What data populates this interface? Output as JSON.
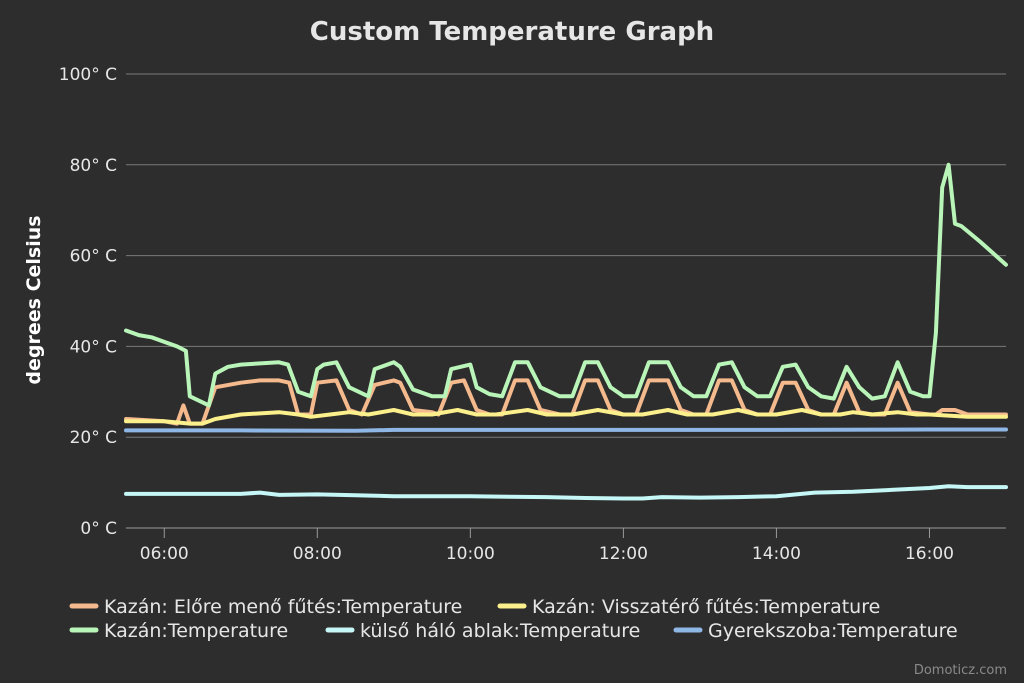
{
  "chart_data": {
    "type": "line",
    "title": "Custom Temperature Graph",
    "ylabel": "degrees Celsius",
    "xlabel": "",
    "ylim": [
      0,
      100
    ],
    "xlim": [
      "05:30",
      "17:00"
    ],
    "y_ticks": [
      {
        "value": 0,
        "label": "0° C"
      },
      {
        "value": 20,
        "label": "20° C"
      },
      {
        "value": 40,
        "label": "40° C"
      },
      {
        "value": 60,
        "label": "60° C"
      },
      {
        "value": 80,
        "label": "80° C"
      },
      {
        "value": 100,
        "label": "100° C"
      }
    ],
    "x_ticks": [
      "06:00",
      "08:00",
      "10:00",
      "12:00",
      "14:00",
      "16:00"
    ],
    "grid": true,
    "legend_position": "bottom",
    "series": [
      {
        "name": "Kazán: Előre menő fűtés:Temperature",
        "color": "#f4b98c",
        "points": [
          [
            "05:30",
            24
          ],
          [
            "06:00",
            23.5
          ],
          [
            "06:10",
            23
          ],
          [
            "06:15",
            27
          ],
          [
            "06:20",
            23
          ],
          [
            "06:30",
            23
          ],
          [
            "06:35",
            27
          ],
          [
            "06:40",
            31
          ],
          [
            "07:00",
            32
          ],
          [
            "07:15",
            32.5
          ],
          [
            "07:30",
            32.5
          ],
          [
            "07:38",
            32
          ],
          [
            "07:45",
            25
          ],
          [
            "07:55",
            25
          ],
          [
            "08:00",
            32
          ],
          [
            "08:15",
            32.5
          ],
          [
            "08:25",
            26
          ],
          [
            "08:35",
            25
          ],
          [
            "08:45",
            31.5
          ],
          [
            "09:00",
            32.5
          ],
          [
            "09:05",
            32
          ],
          [
            "09:15",
            26
          ],
          [
            "09:30",
            25.5
          ],
          [
            "09:35",
            25
          ],
          [
            "09:45",
            32
          ],
          [
            "09:55",
            32.5
          ],
          [
            "10:05",
            26
          ],
          [
            "10:15",
            25
          ],
          [
            "10:25",
            25
          ],
          [
            "10:35",
            32.5
          ],
          [
            "10:45",
            32.5
          ],
          [
            "10:55",
            26
          ],
          [
            "11:10",
            25
          ],
          [
            "11:20",
            25
          ],
          [
            "11:30",
            32.5
          ],
          [
            "11:40",
            32.5
          ],
          [
            "11:50",
            26
          ],
          [
            "12:00",
            25
          ],
          [
            "12:10",
            25
          ],
          [
            "12:20",
            32.5
          ],
          [
            "12:35",
            32.5
          ],
          [
            "12:45",
            26
          ],
          [
            "12:55",
            25
          ],
          [
            "13:05",
            25
          ],
          [
            "13:15",
            32.5
          ],
          [
            "13:25",
            32.5
          ],
          [
            "13:35",
            26
          ],
          [
            "13:45",
            25
          ],
          [
            "13:55",
            25
          ],
          [
            "14:05",
            32
          ],
          [
            "14:15",
            32
          ],
          [
            "14:25",
            26
          ],
          [
            "14:35",
            25
          ],
          [
            "14:45",
            25
          ],
          [
            "14:55",
            32
          ],
          [
            "15:05",
            25.5
          ],
          [
            "15:15",
            25
          ],
          [
            "15:25",
            25
          ],
          [
            "15:35",
            32
          ],
          [
            "15:45",
            25.5
          ],
          [
            "16:00",
            25
          ],
          [
            "16:05",
            25
          ],
          [
            "16:10",
            26
          ],
          [
            "16:20",
            26
          ],
          [
            "16:30",
            25
          ],
          [
            "17:00",
            25
          ]
        ]
      },
      {
        "name": "Kazán: Visszatérő fűtés:Temperature",
        "color": "#fcf08c",
        "points": [
          [
            "05:30",
            23.5
          ],
          [
            "06:00",
            23.5
          ],
          [
            "06:20",
            23
          ],
          [
            "06:30",
            23
          ],
          [
            "06:40",
            24
          ],
          [
            "07:00",
            25
          ],
          [
            "07:30",
            25.5
          ],
          [
            "07:45",
            25
          ],
          [
            "07:55",
            24.5
          ],
          [
            "08:10",
            25
          ],
          [
            "08:25",
            25.5
          ],
          [
            "08:40",
            25
          ],
          [
            "09:00",
            26
          ],
          [
            "09:15",
            25
          ],
          [
            "09:30",
            25
          ],
          [
            "09:50",
            26
          ],
          [
            "10:05",
            25
          ],
          [
            "10:20",
            25
          ],
          [
            "10:45",
            26
          ],
          [
            "11:00",
            25
          ],
          [
            "11:20",
            25
          ],
          [
            "11:40",
            26
          ],
          [
            "12:00",
            25
          ],
          [
            "12:15",
            25
          ],
          [
            "12:35",
            26
          ],
          [
            "12:50",
            25
          ],
          [
            "13:10",
            25
          ],
          [
            "13:30",
            26
          ],
          [
            "13:45",
            25
          ],
          [
            "14:00",
            25
          ],
          [
            "14:20",
            26
          ],
          [
            "14:35",
            25
          ],
          [
            "14:50",
            25
          ],
          [
            "15:00",
            25.5
          ],
          [
            "15:15",
            25
          ],
          [
            "15:35",
            25.5
          ],
          [
            "15:50",
            25
          ],
          [
            "16:00",
            25
          ],
          [
            "16:30",
            24.5
          ],
          [
            "17:00",
            24.5
          ]
        ]
      },
      {
        "name": "Kazán:Temperature",
        "color": "#b9f5b9",
        "points": [
          [
            "05:30",
            43.5
          ],
          [
            "05:40",
            42.5
          ],
          [
            "05:50",
            42
          ],
          [
            "06:00",
            41
          ],
          [
            "06:10",
            40
          ],
          [
            "06:17",
            39
          ],
          [
            "06:20",
            29
          ],
          [
            "06:35",
            27
          ],
          [
            "06:40",
            34
          ],
          [
            "06:50",
            35.5
          ],
          [
            "07:00",
            36
          ],
          [
            "07:30",
            36.5
          ],
          [
            "07:37",
            36
          ],
          [
            "07:45",
            30
          ],
          [
            "07:55",
            29
          ],
          [
            "08:00",
            35
          ],
          [
            "08:05",
            36
          ],
          [
            "08:15",
            36.5
          ],
          [
            "08:25",
            31
          ],
          [
            "08:40",
            29
          ],
          [
            "08:45",
            35
          ],
          [
            "09:00",
            36.5
          ],
          [
            "09:05",
            35.5
          ],
          [
            "09:15",
            30.5
          ],
          [
            "09:30",
            29
          ],
          [
            "09:40",
            29
          ],
          [
            "09:45",
            35
          ],
          [
            "10:00",
            36
          ],
          [
            "10:05",
            31
          ],
          [
            "10:15",
            29.5
          ],
          [
            "10:25",
            29
          ],
          [
            "10:35",
            36.5
          ],
          [
            "10:45",
            36.5
          ],
          [
            "10:55",
            31
          ],
          [
            "11:10",
            29
          ],
          [
            "11:20",
            29
          ],
          [
            "11:30",
            36.5
          ],
          [
            "11:40",
            36.5
          ],
          [
            "11:50",
            31
          ],
          [
            "12:00",
            29
          ],
          [
            "12:10",
            29
          ],
          [
            "12:20",
            36.5
          ],
          [
            "12:35",
            36.5
          ],
          [
            "12:45",
            31
          ],
          [
            "12:55",
            29
          ],
          [
            "13:05",
            29
          ],
          [
            "13:15",
            36
          ],
          [
            "13:25",
            36.5
          ],
          [
            "13:35",
            31
          ],
          [
            "13:45",
            29
          ],
          [
            "13:55",
            29
          ],
          [
            "14:05",
            35.5
          ],
          [
            "14:15",
            36
          ],
          [
            "14:25",
            31
          ],
          [
            "14:35",
            29
          ],
          [
            "14:45",
            28.5
          ],
          [
            "14:55",
            35.5
          ],
          [
            "15:05",
            31
          ],
          [
            "15:15",
            28.5
          ],
          [
            "15:25",
            29
          ],
          [
            "15:35",
            36.5
          ],
          [
            "15:45",
            30
          ],
          [
            "15:55",
            29
          ],
          [
            "16:00",
            29
          ],
          [
            "16:05",
            43
          ],
          [
            "16:10",
            75
          ],
          [
            "16:15",
            80
          ],
          [
            "16:20",
            67
          ],
          [
            "16:25",
            66.5
          ],
          [
            "16:40",
            63
          ],
          [
            "17:00",
            58
          ]
        ]
      },
      {
        "name": "külső háló ablak:Temperature",
        "color": "#c6f7f7",
        "points": [
          [
            "05:30",
            7.5
          ],
          [
            "06:00",
            7.5
          ],
          [
            "06:30",
            7.5
          ],
          [
            "07:00",
            7.5
          ],
          [
            "07:15",
            7.8
          ],
          [
            "07:30",
            7.3
          ],
          [
            "08:00",
            7.4
          ],
          [
            "08:30",
            7.2
          ],
          [
            "09:00",
            7.0
          ],
          [
            "09:30",
            7.0
          ],
          [
            "10:00",
            7.0
          ],
          [
            "10:30",
            6.9
          ],
          [
            "11:00",
            6.8
          ],
          [
            "11:30",
            6.6
          ],
          [
            "12:00",
            6.5
          ],
          [
            "12:15",
            6.5
          ],
          [
            "12:30",
            6.8
          ],
          [
            "13:00",
            6.7
          ],
          [
            "13:30",
            6.8
          ],
          [
            "14:00",
            7.0
          ],
          [
            "14:30",
            7.8
          ],
          [
            "15:00",
            8.0
          ],
          [
            "15:30",
            8.4
          ],
          [
            "16:00",
            8.8
          ],
          [
            "16:15",
            9.2
          ],
          [
            "16:30",
            9.0
          ],
          [
            "17:00",
            9.0
          ]
        ]
      },
      {
        "name": "Gyerekszoba:Temperature",
        "color": "#8fb7e6",
        "points": [
          [
            "05:30",
            21.5
          ],
          [
            "07:00",
            21.5
          ],
          [
            "08:30",
            21.4
          ],
          [
            "09:00",
            21.6
          ],
          [
            "10:00",
            21.6
          ],
          [
            "12:00",
            21.6
          ],
          [
            "14:00",
            21.6
          ],
          [
            "16:00",
            21.7
          ],
          [
            "17:00",
            21.7
          ]
        ]
      }
    ]
  },
  "credits": "Domoticz.com"
}
